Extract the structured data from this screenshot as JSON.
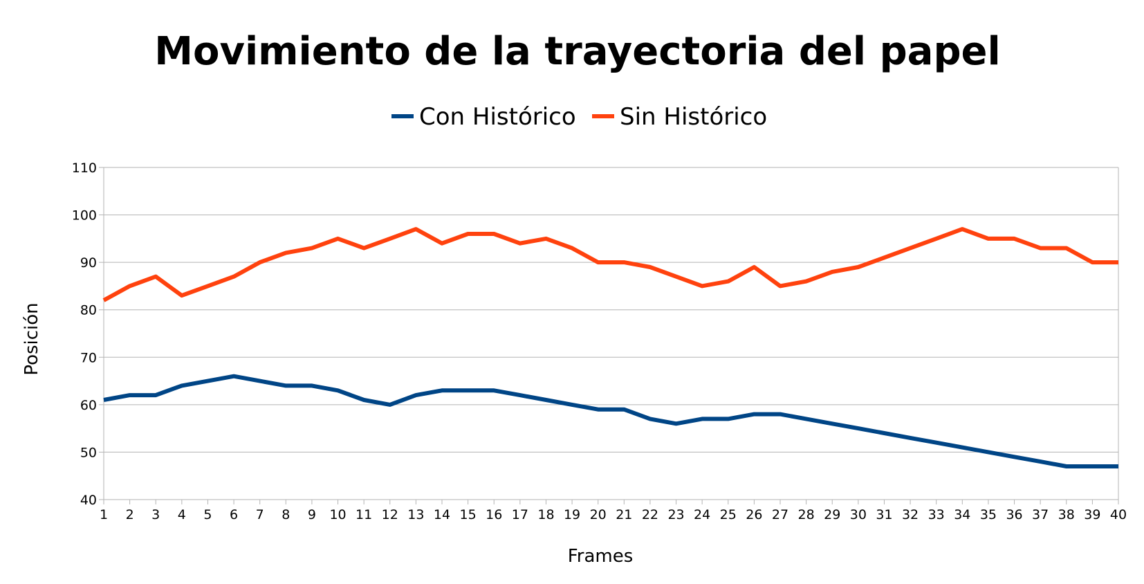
{
  "chart_data": {
    "type": "line",
    "title": "Movimiento de la trayectoria del papel",
    "xlabel": "Frames",
    "ylabel": "Posición",
    "categories": [
      "1",
      "2",
      "3",
      "4",
      "5",
      "6",
      "7",
      "8",
      "9",
      "10",
      "11",
      "12",
      "13",
      "14",
      "15",
      "16",
      "17",
      "18",
      "19",
      "20",
      "21",
      "22",
      "23",
      "24",
      "25",
      "26",
      "27",
      "28",
      "29",
      "30",
      "31",
      "32",
      "33",
      "34",
      "35",
      "36",
      "37",
      "38",
      "39",
      "40"
    ],
    "ylim": [
      40,
      110
    ],
    "yticks": [
      "40",
      "50",
      "60",
      "70",
      "80",
      "90",
      "100",
      "110"
    ],
    "grid": "horizontal",
    "legend_position": "top-center",
    "series": [
      {
        "name": "Con Histórico",
        "color": "#004586",
        "values": [
          61,
          62,
          62,
          64,
          65,
          66,
          65,
          64,
          64,
          63,
          61,
          60,
          62,
          63,
          63,
          63,
          62,
          61,
          60,
          59,
          59,
          57,
          56,
          57,
          57,
          58,
          58,
          57,
          56,
          55,
          54,
          53,
          52,
          51,
          50,
          49,
          48,
          47,
          47,
          47
        ]
      },
      {
        "name": "Sin Histórico",
        "color": "#ff420e",
        "values": [
          82,
          85,
          87,
          83,
          85,
          87,
          90,
          92,
          93,
          95,
          93,
          95,
          97,
          94,
          96,
          96,
          94,
          95,
          93,
          90,
          90,
          89,
          87,
          85,
          86,
          89,
          85,
          86,
          88,
          89,
          91,
          93,
          95,
          97,
          95,
          95,
          93,
          93,
          90,
          90
        ]
      }
    ]
  }
}
